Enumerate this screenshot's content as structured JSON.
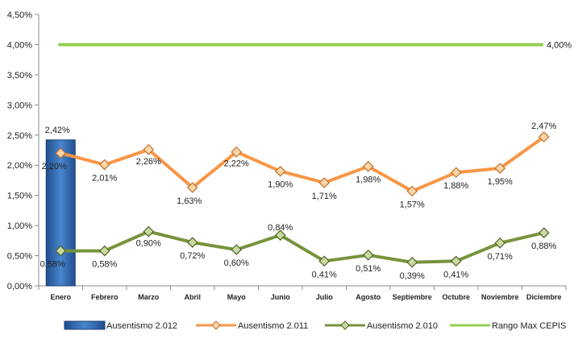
{
  "chart_data": {
    "type": "bar-line",
    "categories": [
      "Enero",
      "Febrero",
      "Marzo",
      "Abril",
      "Mayo",
      "Junio",
      "Julio",
      "Agosto",
      "Septiembre",
      "Octubre",
      "Noviembre",
      "Diciembre"
    ],
    "y_ticks": [
      "0,00%",
      "0,50%",
      "1,00%",
      "1,50%",
      "2,00%",
      "2,50%",
      "3,00%",
      "3,50%",
      "4,00%",
      "4,50%"
    ],
    "ylim": [
      0,
      4.5
    ],
    "y_unit": "%",
    "grid": false,
    "legend_position": "bottom",
    "series": [
      {
        "name": "Ausentismo 2.012",
        "type": "bar",
        "color": "#2f66ad",
        "values": [
          2.42,
          null,
          null,
          null,
          null,
          null,
          null,
          null,
          null,
          null,
          null,
          null
        ],
        "labels": [
          "2,42%",
          "",
          "",
          "",
          "",
          "",
          "",
          "",
          "",
          "",
          "",
          ""
        ],
        "label_color": "#2f66ad"
      },
      {
        "name": "Ausentismo 2.011",
        "type": "line",
        "color": "#f79646",
        "marker": "diamond",
        "values": [
          2.2,
          2.01,
          2.26,
          1.63,
          2.22,
          1.9,
          1.71,
          1.98,
          1.57,
          1.88,
          1.95,
          2.47
        ],
        "labels": [
          "2,20%",
          "2,01%",
          "2,26%",
          "1,63%",
          "2,22%",
          "1,90%",
          "1,71%",
          "1,98%",
          "1,57%",
          "1,88%",
          "1,95%",
          "2,47%"
        ]
      },
      {
        "name": "Ausentismo 2.010",
        "type": "line",
        "color": "#77933c",
        "marker": "diamond",
        "values": [
          0.58,
          0.58,
          0.9,
          0.72,
          0.6,
          0.84,
          0.41,
          0.51,
          0.39,
          0.41,
          0.71,
          0.88
        ],
        "labels": [
          "0,58%",
          "0,58%",
          "0,90%",
          "0,72%",
          "0,60%",
          "0,84%",
          "0,41%",
          "0,51%",
          "0,39%",
          "0,41%",
          "0,71%",
          "0,88%"
        ]
      },
      {
        "name": "Rango Max CEPIS",
        "type": "line",
        "color": "#92d050",
        "marker": "none",
        "values": [
          4.0,
          4.0,
          4.0,
          4.0,
          4.0,
          4.0,
          4.0,
          4.0,
          4.0,
          4.0,
          4.0,
          4.0
        ],
        "labels": [
          "",
          "",
          "",
          "",
          "",
          "",
          "",
          "",
          "",
          "",
          "",
          "4,00%"
        ],
        "label_color": "#4aa84a"
      }
    ]
  }
}
